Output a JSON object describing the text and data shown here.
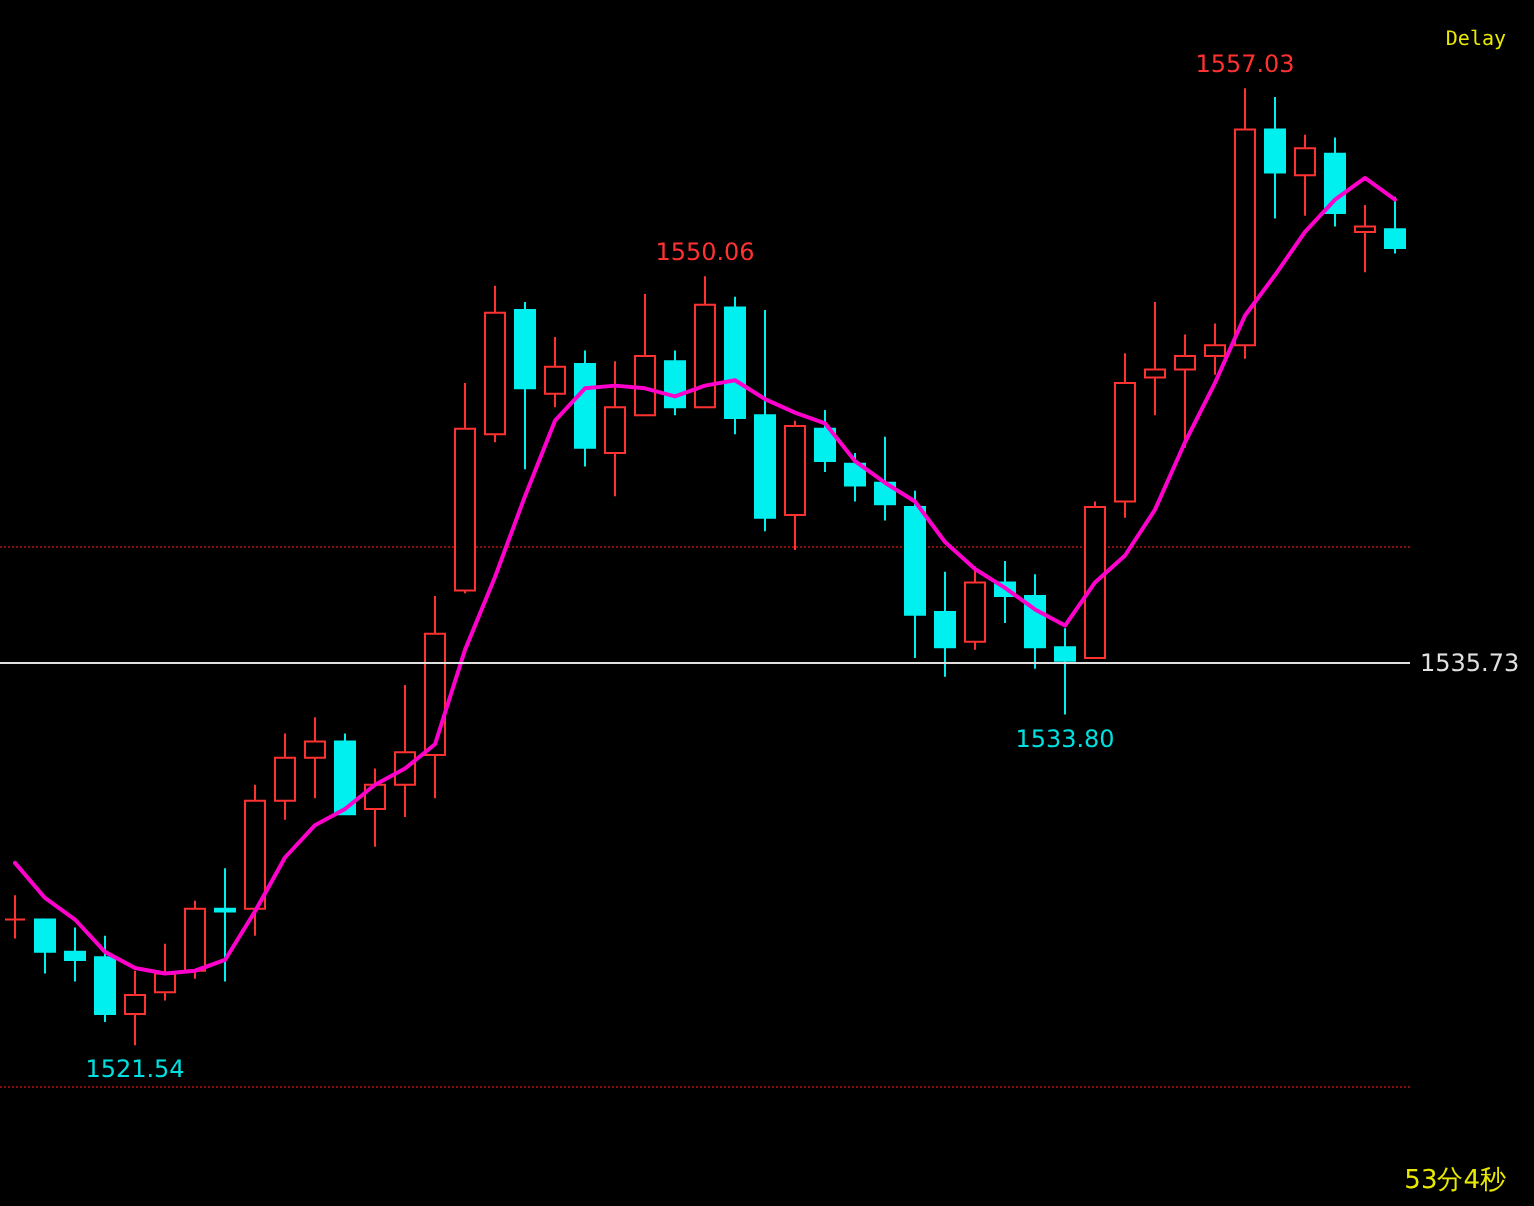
{
  "chart_data": {
    "type": "candlestick",
    "categories": [
      null,
      null,
      null,
      null,
      null,
      null,
      null,
      null,
      null,
      null,
      null,
      null,
      null,
      null,
      null,
      null,
      null,
      null,
      null,
      null,
      null,
      null,
      null,
      null,
      null,
      null,
      null,
      null,
      null,
      null,
      null,
      null,
      null,
      null,
      null,
      null,
      null,
      null,
      null,
      null,
      null,
      null,
      null,
      null,
      null,
      null,
      null
    ],
    "ohlc": [
      [
        1526.2,
        1527.1,
        1525.5,
        1526.2
      ],
      [
        1526.2,
        1526.2,
        1524.2,
        1525.0
      ],
      [
        1525.0,
        1525.9,
        1523.9,
        1524.7
      ],
      [
        1524.8,
        1525.6,
        1522.4,
        1522.7
      ],
      [
        1522.7,
        1524.3,
        1521.54,
        1523.4
      ],
      [
        1523.5,
        1525.3,
        1523.2,
        1524.2
      ],
      [
        1524.3,
        1526.9,
        1524.0,
        1526.6
      ],
      [
        1526.6,
        1528.1,
        1523.9,
        1526.5
      ],
      [
        1526.6,
        1531.2,
        1525.6,
        1530.6
      ],
      [
        1530.6,
        1533.1,
        1529.9,
        1532.2
      ],
      [
        1532.2,
        1533.7,
        1530.7,
        1532.8
      ],
      [
        1532.8,
        1533.1,
        1530.1,
        1530.1
      ],
      [
        1530.3,
        1531.8,
        1528.9,
        1531.2
      ],
      [
        1531.2,
        1534.9,
        1530.0,
        1532.4
      ],
      [
        1532.3,
        1538.2,
        1530.7,
        1536.8
      ],
      [
        1538.4,
        1546.1,
        1538.3,
        1544.4
      ],
      [
        1544.2,
        1549.7,
        1543.9,
        1548.7
      ],
      [
        1548.8,
        1549.1,
        1542.9,
        1545.9
      ],
      [
        1545.7,
        1547.8,
        1545.2,
        1546.7
      ],
      [
        1546.8,
        1547.3,
        1543.0,
        1543.7
      ],
      [
        1543.5,
        1546.9,
        1541.9,
        1545.2
      ],
      [
        1544.9,
        1549.4,
        1544.9,
        1547.1
      ],
      [
        1546.9,
        1547.3,
        1544.9,
        1545.2
      ],
      [
        1545.2,
        1550.06,
        1545.2,
        1549.0
      ],
      [
        1548.9,
        1549.3,
        1544.2,
        1544.8
      ],
      [
        1544.9,
        1548.8,
        1540.6,
        1541.1
      ],
      [
        1541.2,
        1544.7,
        1539.9,
        1544.5
      ],
      [
        1544.4,
        1545.1,
        1542.8,
        1543.2
      ],
      [
        1543.1,
        1543.5,
        1541.7,
        1542.3
      ],
      [
        1542.4,
        1544.1,
        1541.0,
        1541.6
      ],
      [
        1541.5,
        1542.1,
        1535.9,
        1537.5
      ],
      [
        1537.6,
        1539.1,
        1535.2,
        1536.3
      ],
      [
        1536.5,
        1539.3,
        1536.2,
        1538.7
      ],
      [
        1538.7,
        1539.5,
        1537.2,
        1538.2
      ],
      [
        1538.2,
        1539.0,
        1535.5,
        1536.3
      ],
      [
        1536.3,
        1537.0,
        1533.8,
        1535.8
      ],
      [
        1535.9,
        1541.7,
        1535.9,
        1541.5
      ],
      [
        1541.7,
        1547.2,
        1541.1,
        1546.1
      ],
      [
        1546.3,
        1549.1,
        1544.9,
        1546.6
      ],
      [
        1546.6,
        1547.9,
        1543.7,
        1547.1
      ],
      [
        1547.1,
        1548.3,
        1546.4,
        1547.5
      ],
      [
        1547.5,
        1557.03,
        1547.0,
        1555.5
      ],
      [
        1555.5,
        1556.7,
        1552.2,
        1553.9
      ],
      [
        1553.8,
        1555.3,
        1552.3,
        1554.8
      ],
      [
        1554.6,
        1555.2,
        1551.9,
        1552.4
      ],
      [
        1551.7,
        1552.7,
        1550.2,
        1551.9
      ],
      [
        1551.8,
        1553.0,
        1550.9,
        1551.1
      ]
    ],
    "colors": [
      "#ff3232",
      "#00f0f0",
      "#00f0f0",
      "#00f0f0",
      "#ff3232",
      "#ff3232",
      "#ff3232",
      "#00f0f0",
      "#ff3232",
      "#ff3232",
      "#ff3232",
      "#00f0f0",
      "#ff3232",
      "#ff3232",
      "#ff3232",
      "#ff3232",
      "#ff3232",
      "#00f0f0",
      "#ff3232",
      "#00f0f0",
      "#ff3232",
      "#ff3232",
      "#00f0f0",
      "#ff3232",
      "#00f0f0",
      "#00f0f0",
      "#ff3232",
      "#00f0f0",
      "#00f0f0",
      "#00f0f0",
      "#00f0f0",
      "#00f0f0",
      "#ff3232",
      "#00f0f0",
      "#00f0f0",
      "#00f0f0",
      "#ff3232",
      "#ff3232",
      "#ff3232",
      "#ff3232",
      "#ff3232",
      "#ff3232",
      "#00f0f0",
      "#ff3232",
      "#00f0f0",
      "#ff3232",
      "#00f0f0"
    ],
    "series": [
      {
        "type": "line",
        "color": "#ff00cc",
        "values": [
          1528.3,
          1527.0,
          1526.2,
          1525.0,
          1524.4,
          1524.2,
          1524.3,
          1524.7,
          1526.5,
          1528.5,
          1529.7,
          1530.3,
          1531.2,
          1531.8,
          1532.7,
          1536.2,
          1538.9,
          1541.9,
          1544.7,
          1545.9,
          1546.0,
          1545.9,
          1545.6,
          1546.0,
          1546.2,
          1545.5,
          1545.0,
          1544.6,
          1543.2,
          1542.4,
          1541.7,
          1540.2,
          1539.2,
          1538.5,
          1537.7,
          1537.1,
          1538.7,
          1539.7,
          1541.4,
          1543.9,
          1546.1,
          1548.6,
          1550.1,
          1551.7,
          1552.9,
          1553.7,
          1552.9
        ]
      }
    ],
    "yticks": [
      1520,
      1540
    ],
    "tick_labels": false,
    "grid": "y",
    "marker": "none",
    "ref_lines": [
      {
        "axis": "y",
        "value": 1535.73,
        "label": "1535.73",
        "color": "#e0e0e0"
      }
    ],
    "annotations": [
      {
        "text": "1557.03",
        "y": 1557.03
      },
      {
        "text": "1550.06",
        "y": 1550.06
      },
      {
        "text": "1533.80",
        "y": 1533.8
      },
      {
        "text": "1521.54",
        "y": 1521.54
      },
      "Delay",
      "53分4秒"
    ]
  }
}
